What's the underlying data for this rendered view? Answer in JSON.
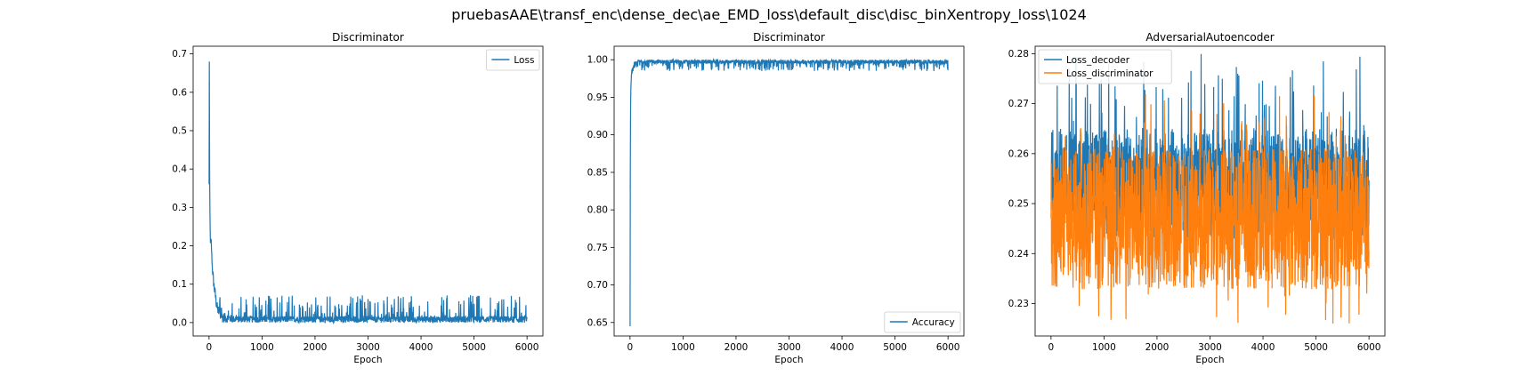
{
  "suptitle": "pruebasAAE\\transf_enc\\dense_dec\\ae_EMD_loss\\default_disc\\disc_binXentropy_loss\\1024",
  "colors": {
    "blue": "#1f77b4",
    "orange": "#ff7f0e"
  },
  "chart_data": [
    {
      "type": "line",
      "title": "Discriminator",
      "xlabel": "Epoch",
      "ylabel": "",
      "xlim": [
        -300,
        6300
      ],
      "ylim": [
        -0.035,
        0.72
      ],
      "xticks": [
        0,
        1000,
        2000,
        3000,
        4000,
        5000,
        6000
      ],
      "yticks": [
        0.0,
        0.1,
        0.2,
        0.3,
        0.4,
        0.5,
        0.6,
        0.7
      ],
      "ytick_labels": [
        "0.0",
        "0.1",
        "0.2",
        "0.3",
        "0.4",
        "0.5",
        "0.6",
        "0.7"
      ],
      "legend": "upper right",
      "series": [
        {
          "name": "Loss",
          "color": "#1f77b4",
          "x": [
            0,
            5,
            10,
            15,
            20,
            25,
            30,
            40,
            50,
            60,
            75,
            90,
            110,
            130,
            150,
            175,
            200,
            250,
            300,
            400,
            500,
            700,
            1000,
            1500,
            2000,
            2500,
            3000,
            3500,
            4000,
            4500,
            5000,
            5500,
            6000
          ],
          "y": [
            0.36,
            0.68,
            0.42,
            0.3,
            0.25,
            0.22,
            0.2,
            0.21,
            0.18,
            0.15,
            0.12,
            0.1,
            0.08,
            0.06,
            0.04,
            0.03,
            0.025,
            0.02,
            0.018,
            0.015,
            0.012,
            0.012,
            0.012,
            0.012,
            0.012,
            0.012,
            0.012,
            0.012,
            0.012,
            0.012,
            0.012,
            0.012,
            0.012
          ],
          "noise_band": [
            0.0,
            0.07
          ]
        }
      ]
    },
    {
      "type": "line",
      "title": "Discriminator",
      "xlabel": "Epoch",
      "ylabel": "",
      "xlim": [
        -300,
        6300
      ],
      "ylim": [
        0.632,
        1.018
      ],
      "xticks": [
        0,
        1000,
        2000,
        3000,
        4000,
        5000,
        6000
      ],
      "yticks": [
        0.65,
        0.7,
        0.75,
        0.8,
        0.85,
        0.9,
        0.95,
        1.0
      ],
      "ytick_labels": [
        "0.65",
        "0.70",
        "0.75",
        "0.80",
        "0.85",
        "0.90",
        "0.95",
        "1.00"
      ],
      "legend": "lower right",
      "series": [
        {
          "name": "Accuracy",
          "color": "#1f77b4",
          "x": [
            0,
            5,
            10,
            15,
            20,
            30,
            40,
            60,
            80,
            100,
            150,
            200,
            300,
            500,
            1000,
            2000,
            3000,
            4000,
            5000,
            6000
          ],
          "y": [
            0.645,
            0.86,
            0.93,
            0.96,
            0.97,
            0.98,
            0.985,
            0.99,
            0.992,
            0.994,
            0.995,
            0.996,
            0.997,
            0.997,
            0.997,
            0.998,
            0.998,
            0.998,
            0.998,
            0.998
          ],
          "noise_band": [
            0.985,
            1.0
          ]
        }
      ]
    },
    {
      "type": "line",
      "title": "AdversarialAutoencoder",
      "xlabel": "Epoch",
      "ylabel": "",
      "xlim": [
        -300,
        6300
      ],
      "ylim": [
        0.2235,
        0.2815
      ],
      "xticks": [
        0,
        1000,
        2000,
        3000,
        4000,
        5000,
        6000
      ],
      "yticks": [
        0.23,
        0.24,
        0.25,
        0.26,
        0.27,
        0.28
      ],
      "ytick_labels": [
        "0.23",
        "0.24",
        "0.25",
        "0.26",
        "0.27",
        "0.28"
      ],
      "legend": "upper left",
      "series": [
        {
          "name": "Loss_decoder",
          "color": "#1f77b4",
          "x": [
            0,
            6000
          ],
          "y": [
            0.254,
            0.254
          ],
          "noise_band": [
            0.243,
            0.28
          ]
        },
        {
          "name": "Loss_discriminator",
          "color": "#ff7f0e",
          "x": [
            0,
            6000
          ],
          "y": [
            0.247,
            0.247
          ],
          "noise_band": [
            0.225,
            0.272
          ]
        }
      ]
    }
  ]
}
